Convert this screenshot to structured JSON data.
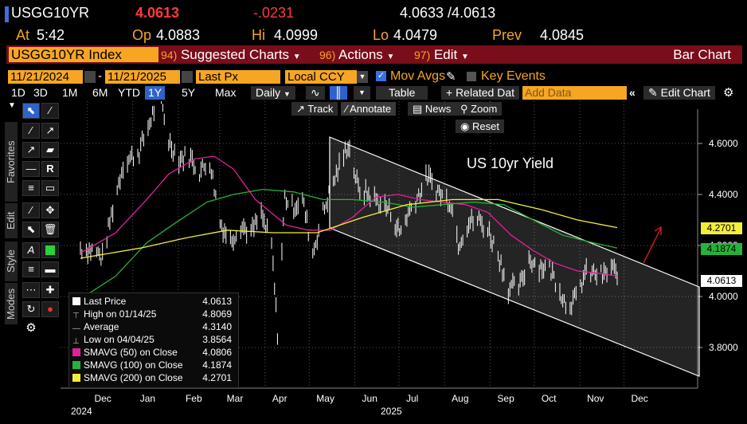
{
  "header": {
    "ticker": "USGG10YR",
    "last": "4.0613",
    "change": "-.0231",
    "bidask": "4.0633 /4.0613",
    "at_label": "At",
    "at_value": "5:42",
    "op_label": "Op",
    "op_value": "4.0883",
    "hi_label": "Hi",
    "hi_value": "4.0999",
    "lo_label": "Lo",
    "lo_value": "4.0479",
    "prev_label": "Prev",
    "prev_value": "4.0845"
  },
  "menubar": {
    "security": "USGG10YR Index",
    "m1_num": "94)",
    "m1": "Suggested Charts",
    "m2_num": "96)",
    "m2": "Actions",
    "m3_num": "97)",
    "m3": "Edit",
    "chart_type": "Bar Chart"
  },
  "settings": {
    "start_date": "11/21/2024",
    "dash": "-",
    "end_date": "11/21/2025",
    "field": "Last Px",
    "currency": "Local CCY",
    "mov_avgs": "Mov Avgs",
    "key_events": "Key Events"
  },
  "toolbar": {
    "periods": [
      "1D",
      "3D",
      "1M",
      "6M",
      "YTD",
      "1Y",
      "5Y",
      "Max"
    ],
    "selected_period": "1Y",
    "frequency": "Daily",
    "table": "Table",
    "related": "+ Related Dat",
    "add_data_placeholder": "Add Data",
    "edit_chart": "Edit Chart"
  },
  "chart_tools": {
    "track": "Track",
    "annotate": "Annotate",
    "news": "News",
    "zoom": "Zoom",
    "reset": "Reset"
  },
  "side_tabs": {
    "favorites": "Favorites",
    "edit": "Edit",
    "style": "Style",
    "modes": "Modes"
  },
  "annotation": {
    "title": "US 10yr Yield"
  },
  "legend": [
    {
      "label": "Last Price",
      "value": "4.0613",
      "color": "#ffffff"
    },
    {
      "label": "High on 01/14/25",
      "value": "4.8069",
      "color": ""
    },
    {
      "label": "Average",
      "value": "4.3140",
      "color": ""
    },
    {
      "label": "Low on 04/04/25",
      "value": "3.8564",
      "color": ""
    },
    {
      "label": "SMAVG (50)  on Close",
      "value": "4.0806",
      "color": "#e0209a"
    },
    {
      "label": "SMAVG (100)  on Close",
      "value": "4.1874",
      "color": "#27b23a"
    },
    {
      "label": "SMAVG (200)  on Close",
      "value": "4.2701",
      "color": "#f2ee3a"
    }
  ],
  "tags": {
    "sma200": "4.2701",
    "sma100": "4.1874",
    "last": "4.0613"
  },
  "colors": {
    "amber": "#f6a623",
    "sma50": "#e0209a",
    "sma100": "#27b23a",
    "sma200": "#f2ee3a",
    "menubar": "#7a0d1a"
  },
  "chart_data": {
    "type": "line",
    "ylim": [
      3.7,
      4.8
    ],
    "yticks": [
      "4.6000",
      "4.4000",
      "4.2000",
      "4.0000",
      "3.8000"
    ],
    "x_months": [
      "Dec",
      "Jan",
      "Feb",
      "Mar",
      "Apr",
      "May",
      "Jun",
      "Jul",
      "Aug",
      "Sep",
      "Oct",
      "Nov",
      "Dec"
    ],
    "x_years": [
      "2024",
      "2025"
    ],
    "series": [
      {
        "name": "Last Price",
        "points": [
          [
            "2024-11-21",
            4.19
          ],
          [
            "2024-12-01",
            4.18
          ],
          [
            "2024-12-06",
            4.15
          ],
          [
            "2024-12-12",
            4.32
          ],
          [
            "2024-12-20",
            4.52
          ],
          [
            "2024-12-31",
            4.57
          ],
          [
            "2025-01-07",
            4.68
          ],
          [
            "2025-01-14",
            4.8
          ],
          [
            "2025-01-20",
            4.61
          ],
          [
            "2025-01-27",
            4.54
          ],
          [
            "2025-02-03",
            4.55
          ],
          [
            "2025-02-10",
            4.49
          ],
          [
            "2025-02-17",
            4.53
          ],
          [
            "2025-02-24",
            4.29
          ],
          [
            "2025-03-03",
            4.22
          ],
          [
            "2025-03-10",
            4.28
          ],
          [
            "2025-03-17",
            4.25
          ],
          [
            "2025-03-24",
            4.32
          ],
          [
            "2025-03-31",
            4.2
          ],
          [
            "2025-04-04",
            3.86
          ],
          [
            "2025-04-09",
            4.39
          ],
          [
            "2025-04-14",
            4.35
          ],
          [
            "2025-04-21",
            4.38
          ],
          [
            "2025-04-28",
            4.17
          ],
          [
            "2025-05-05",
            4.33
          ],
          [
            "2025-05-12",
            4.45
          ],
          [
            "2025-05-19",
            4.55
          ],
          [
            "2025-05-22",
            4.6
          ],
          [
            "2025-05-29",
            4.42
          ],
          [
            "2025-06-05",
            4.4
          ],
          [
            "2025-06-12",
            4.37
          ],
          [
            "2025-06-19",
            4.34
          ],
          [
            "2025-06-26",
            4.25
          ],
          [
            "2025-07-03",
            4.34
          ],
          [
            "2025-07-10",
            4.41
          ],
          [
            "2025-07-15",
            4.47
          ],
          [
            "2025-07-24",
            4.4
          ],
          [
            "2025-07-31",
            4.37
          ],
          [
            "2025-08-05",
            4.21
          ],
          [
            "2025-08-12",
            4.29
          ],
          [
            "2025-08-19",
            4.3
          ],
          [
            "2025-08-26",
            4.25
          ],
          [
            "2025-09-02",
            4.15
          ],
          [
            "2025-09-08",
            4.03
          ],
          [
            "2025-09-16",
            4.04
          ],
          [
            "2025-09-22",
            4.15
          ],
          [
            "2025-09-29",
            4.12
          ],
          [
            "2025-10-06",
            4.11
          ],
          [
            "2025-10-13",
            4.03
          ],
          [
            "2025-10-17",
            3.97
          ],
          [
            "2025-10-24",
            3.99
          ],
          [
            "2025-10-30",
            4.09
          ],
          [
            "2025-11-06",
            4.09
          ],
          [
            "2025-11-12",
            4.08
          ],
          [
            "2025-11-18",
            4.12
          ],
          [
            "2025-11-21",
            4.06
          ]
        ]
      },
      {
        "name": "SMAVG (50)",
        "points": [
          [
            "2024-11-21",
            4.17
          ],
          [
            "2024-12-15",
            4.25
          ],
          [
            "2025-01-05",
            4.38
          ],
          [
            "2025-01-20",
            4.48
          ],
          [
            "2025-02-07",
            4.54
          ],
          [
            "2025-02-20",
            4.55
          ],
          [
            "2025-03-05",
            4.5
          ],
          [
            "2025-03-20",
            4.38
          ],
          [
            "2025-04-10",
            4.28
          ],
          [
            "2025-04-25",
            4.26
          ],
          [
            "2025-05-10",
            4.26
          ],
          [
            "2025-05-25",
            4.31
          ],
          [
            "2025-06-10",
            4.39
          ],
          [
            "2025-06-25",
            4.4
          ],
          [
            "2025-07-10",
            4.38
          ],
          [
            "2025-07-25",
            4.37
          ],
          [
            "2025-08-10",
            4.36
          ],
          [
            "2025-08-25",
            4.33
          ],
          [
            "2025-09-10",
            4.24
          ],
          [
            "2025-09-25",
            4.18
          ],
          [
            "2025-10-10",
            4.13
          ],
          [
            "2025-10-25",
            4.1
          ],
          [
            "2025-11-10",
            4.09
          ],
          [
            "2025-11-21",
            4.08
          ]
        ]
      },
      {
        "name": "SMAVG (100)",
        "points": [
          [
            "2024-11-21",
            3.99
          ],
          [
            "2024-12-15",
            4.08
          ],
          [
            "2025-01-05",
            4.21
          ],
          [
            "2025-01-25",
            4.29
          ],
          [
            "2025-02-15",
            4.37
          ],
          [
            "2025-03-05",
            4.4
          ],
          [
            "2025-03-25",
            4.42
          ],
          [
            "2025-04-15",
            4.41
          ],
          [
            "2025-05-05",
            4.38
          ],
          [
            "2025-05-25",
            4.38
          ],
          [
            "2025-06-15",
            4.37
          ],
          [
            "2025-07-05",
            4.35
          ],
          [
            "2025-07-25",
            4.36
          ],
          [
            "2025-08-15",
            4.37
          ],
          [
            "2025-09-05",
            4.36
          ],
          [
            "2025-09-25",
            4.3
          ],
          [
            "2025-10-15",
            4.24
          ],
          [
            "2025-11-05",
            4.21
          ],
          [
            "2025-11-21",
            4.19
          ]
        ]
      },
      {
        "name": "SMAVG (200)",
        "points": [
          [
            "2024-11-21",
            4.15
          ],
          [
            "2025-01-01",
            4.19
          ],
          [
            "2025-02-01",
            4.23
          ],
          [
            "2025-03-01",
            4.26
          ],
          [
            "2025-04-01",
            4.25
          ],
          [
            "2025-05-01",
            4.25
          ],
          [
            "2025-06-01",
            4.31
          ],
          [
            "2025-07-01",
            4.36
          ],
          [
            "2025-08-01",
            4.38
          ],
          [
            "2025-09-01",
            4.38
          ],
          [
            "2025-10-01",
            4.34
          ],
          [
            "2025-10-25",
            4.3
          ],
          [
            "2025-11-21",
            4.27
          ]
        ]
      }
    ]
  }
}
